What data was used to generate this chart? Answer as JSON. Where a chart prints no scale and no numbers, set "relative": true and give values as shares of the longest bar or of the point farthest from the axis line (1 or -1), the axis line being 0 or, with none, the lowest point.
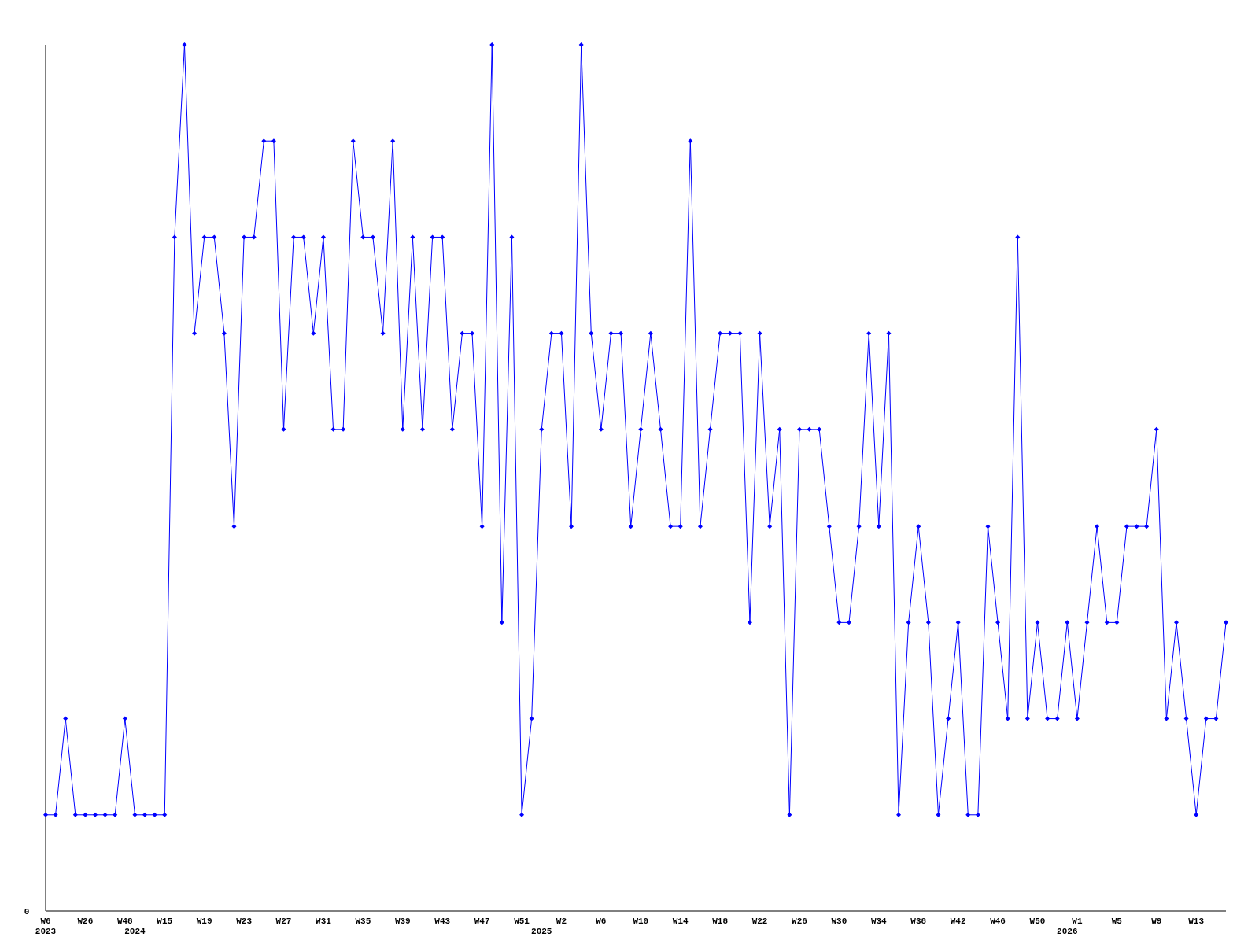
{
  "chart_data": {
    "type": "line",
    "relative": true,
    "marker": "diamond",
    "line_style": "solid",
    "annotations": [
      "0"
    ],
    "categories": [
      "W6\n2023",
      null,
      null,
      null,
      "W26",
      null,
      null,
      null,
      "W48",
      "\n2024",
      null,
      null,
      "W15",
      null,
      null,
      null,
      "W19",
      null,
      null,
      null,
      "W23",
      null,
      null,
      null,
      "W27",
      null,
      null,
      null,
      "W31",
      null,
      null,
      null,
      "W35",
      null,
      null,
      null,
      "W39",
      null,
      null,
      null,
      "W43",
      null,
      null,
      null,
      "W47",
      null,
      null,
      null,
      "W51",
      null,
      "\n2025",
      null,
      "W2",
      null,
      null,
      null,
      "W6",
      null,
      null,
      null,
      "W10",
      null,
      null,
      null,
      "W14",
      null,
      null,
      null,
      "W18",
      null,
      null,
      null,
      "W22",
      null,
      null,
      null,
      "W26",
      null,
      null,
      null,
      "W30",
      null,
      null,
      null,
      "W34",
      null,
      null,
      null,
      "W38",
      null,
      null,
      null,
      "W42",
      null,
      null,
      null,
      "W46",
      null,
      null,
      null,
      "W50",
      null,
      null,
      "\n2026",
      "W1",
      null,
      null,
      null,
      "W5",
      null,
      null,
      null,
      "W9",
      null,
      null,
      null,
      "W13",
      null,
      null,
      null
    ],
    "series": [
      {
        "color": "#0000ff",
        "values": [
          0.111,
          0.111,
          0.222,
          0.111,
          0.111,
          0.111,
          0.111,
          0.111,
          0.222,
          0.111,
          0.111,
          0.111,
          0.111,
          0.778,
          1,
          0.667,
          0.778,
          0.778,
          0.667,
          0.444,
          0.778,
          0.778,
          0.889,
          0.889,
          0.556,
          0.778,
          0.778,
          0.667,
          0.778,
          0.556,
          0.556,
          0.889,
          0.778,
          0.778,
          0.667,
          0.889,
          0.556,
          0.778,
          0.556,
          0.778,
          0.778,
          0.556,
          0.667,
          0.667,
          0.444,
          1,
          0.333,
          0.778,
          0.111,
          0.222,
          0.556,
          0.667,
          0.667,
          0.444,
          1,
          0.667,
          0.556,
          0.667,
          0.667,
          0.444,
          0.556,
          0.667,
          0.556,
          0.444,
          0.444,
          0.889,
          0.444,
          0.556,
          0.667,
          0.667,
          0.667,
          0.333,
          0.667,
          0.444,
          0.556,
          0.111,
          0.556,
          0.556,
          0.556,
          0.444,
          0.333,
          0.333,
          0.444,
          0.667,
          0.444,
          0.667,
          0.111,
          0.333,
          0.444,
          0.333,
          0.111,
          0.222,
          0.333,
          0.111,
          0.111,
          0.444,
          0.333,
          0.222,
          0.778,
          0.222,
          0.333,
          0.222,
          0.222,
          0.333,
          0.222,
          0.333,
          0.444,
          0.333,
          0.333,
          0.444,
          0.444,
          0.444,
          0.556,
          0.222,
          0.333,
          0.222,
          0.111,
          0.222,
          0.222,
          0.333
        ]
      }
    ]
  }
}
